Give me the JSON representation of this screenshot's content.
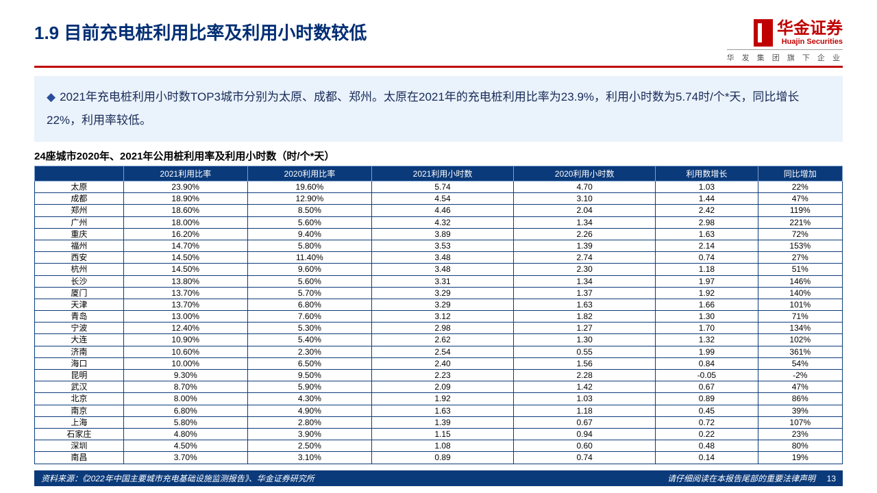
{
  "title": "1.9 目前充电桩利用比率及利用小时数较低",
  "logo": {
    "zh": "华金证券",
    "en": "Huajin Securities",
    "sub": "华 发 集 团 旗 下 企 业"
  },
  "bullet": "2021年充电桩利用小时数TOP3城市分别为太原、成都、郑州。太原在2021年的充电桩利用比率为23.9%，利用小时数为5.74时/个*天，同比增长22%，利用率较低。",
  "subtitle": "24座城市2020年、2021年公用桩利用率及利用小时数（时/个*天）",
  "columns": [
    "",
    "2021利用比率",
    "2020利用比率",
    "2021利用小时数",
    "2020利用小时数",
    "利用数增长",
    "同比增加"
  ],
  "rows": [
    [
      "太原",
      "23.90%",
      "19.60%",
      "5.74",
      "4.70",
      "1.03",
      "22%"
    ],
    [
      "成都",
      "18.90%",
      "12.90%",
      "4.54",
      "3.10",
      "1.44",
      "47%"
    ],
    [
      "郑州",
      "18.60%",
      "8.50%",
      "4.46",
      "2.04",
      "2.42",
      "119%"
    ],
    [
      "广州",
      "18.00%",
      "5.60%",
      "4.32",
      "1.34",
      "2.98",
      "221%"
    ],
    [
      "重庆",
      "16.20%",
      "9.40%",
      "3.89",
      "2.26",
      "1.63",
      "72%"
    ],
    [
      "福州",
      "14.70%",
      "5.80%",
      "3.53",
      "1.39",
      "2.14",
      "153%"
    ],
    [
      "西安",
      "14.50%",
      "11.40%",
      "3.48",
      "2.74",
      "0.74",
      "27%"
    ],
    [
      "杭州",
      "14.50%",
      "9.60%",
      "3.48",
      "2.30",
      "1.18",
      "51%"
    ],
    [
      "长沙",
      "13.80%",
      "5.60%",
      "3.31",
      "1.34",
      "1.97",
      "146%"
    ],
    [
      "厦门",
      "13.70%",
      "5.70%",
      "3.29",
      "1.37",
      "1.92",
      "140%"
    ],
    [
      "天津",
      "13.70%",
      "6.80%",
      "3.29",
      "1.63",
      "1.66",
      "101%"
    ],
    [
      "青岛",
      "13.00%",
      "7.60%",
      "3.12",
      "1.82",
      "1.30",
      "71%"
    ],
    [
      "宁波",
      "12.40%",
      "5.30%",
      "2.98",
      "1.27",
      "1.70",
      "134%"
    ],
    [
      "大连",
      "10.90%",
      "5.40%",
      "2.62",
      "1.30",
      "1.32",
      "102%"
    ],
    [
      "济南",
      "10.60%",
      "2.30%",
      "2.54",
      "0.55",
      "1.99",
      "361%"
    ],
    [
      "海口",
      "10.00%",
      "6.50%",
      "2.40",
      "1.56",
      "0.84",
      "54%"
    ],
    [
      "昆明",
      "9.30%",
      "9.50%",
      "2.23",
      "2.28",
      "-0.05",
      "-2%"
    ],
    [
      "武汉",
      "8.70%",
      "5.90%",
      "2.09",
      "1.42",
      "0.67",
      "47%"
    ],
    [
      "北京",
      "8.00%",
      "4.30%",
      "1.92",
      "1.03",
      "0.89",
      "86%"
    ],
    [
      "南京",
      "6.80%",
      "4.90%",
      "1.63",
      "1.18",
      "0.45",
      "39%"
    ],
    [
      "上海",
      "5.80%",
      "2.80%",
      "1.39",
      "0.67",
      "0.72",
      "107%"
    ],
    [
      "石家庄",
      "4.80%",
      "3.90%",
      "1.15",
      "0.94",
      "0.22",
      "23%"
    ],
    [
      "深圳",
      "4.50%",
      "2.50%",
      "1.08",
      "0.60",
      "0.48",
      "80%"
    ],
    [
      "南昌",
      "3.70%",
      "3.10%",
      "0.89",
      "0.74",
      "0.14",
      "19%"
    ]
  ],
  "footer": {
    "source": "资料来源：《2022年中国主要城市充电基础设施监测报告》、华金证券研究所",
    "disclaimer": "请仔细阅读在本报告尾部的重要法律声明",
    "page": "13"
  },
  "colors": {
    "title": "#002d73",
    "accent": "#c00000",
    "table_header_bg": "#0b3a7a",
    "bullet_bg": "#eaf2fb",
    "border": "#0b3a7a"
  }
}
